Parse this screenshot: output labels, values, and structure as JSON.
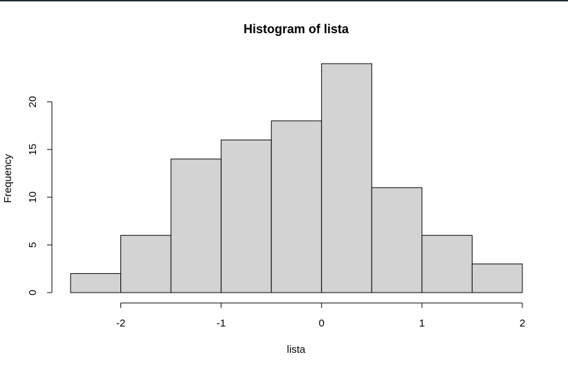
{
  "chart_data": {
    "type": "bar",
    "title": "Histogram of lista",
    "xlabel": "lista",
    "ylabel": "Frequency",
    "bin_edges": [
      -2.5,
      -2.0,
      -1.5,
      -1.0,
      -0.5,
      0.0,
      0.5,
      1.0,
      1.5,
      2.0
    ],
    "values": [
      2,
      6,
      14,
      16,
      18,
      24,
      11,
      6,
      3
    ],
    "x_ticks": [
      -2,
      -1,
      0,
      1,
      2
    ],
    "x_tick_labels": [
      "-2",
      "-1",
      "0",
      "1",
      "2"
    ],
    "y_ticks": [
      0,
      5,
      10,
      15,
      20
    ],
    "y_tick_labels": [
      "0",
      "5",
      "10",
      "15",
      "20"
    ],
    "xlim": [
      -2.5,
      2.0
    ],
    "ylim": [
      0,
      24
    ],
    "grid": false,
    "legend": "none",
    "colors": {
      "bar_fill": "#d3d3d3",
      "bar_stroke": "#000000",
      "axis": "#000000"
    }
  }
}
